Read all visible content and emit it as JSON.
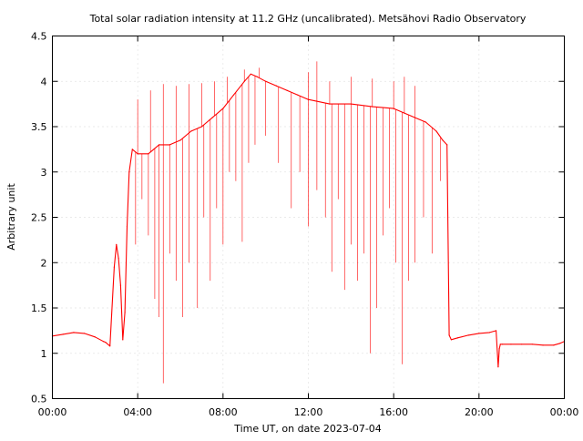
{
  "chart_data": {
    "type": "line",
    "title": "Total solar radiation intensity at 11.2 GHz (uncalibrated). Metsähovi Radio Observatory",
    "xlabel": "Time UT, on date 2023-07-04",
    "ylabel": "Arbitrary unit",
    "xlim": [
      0,
      24
    ],
    "ylim": [
      0.5,
      4.5
    ],
    "grid": true,
    "x_ticks": [
      {
        "value": 0,
        "label": "00:00"
      },
      {
        "value": 4,
        "label": "04:00"
      },
      {
        "value": 8,
        "label": "08:00"
      },
      {
        "value": 12,
        "label": "12:00"
      },
      {
        "value": 16,
        "label": "16:00"
      },
      {
        "value": 20,
        "label": "20:00"
      },
      {
        "value": 24,
        "label": "00:00"
      }
    ],
    "y_ticks": [
      {
        "value": 0.5,
        "label": "0.5"
      },
      {
        "value": 1.0,
        "label": "1"
      },
      {
        "value": 1.5,
        "label": "1.5"
      },
      {
        "value": 2.0,
        "label": "2"
      },
      {
        "value": 2.5,
        "label": "2.5"
      },
      {
        "value": 3.0,
        "label": "3"
      },
      {
        "value": 3.5,
        "label": "3.5"
      },
      {
        "value": 4.0,
        "label": "4"
      },
      {
        "value": 4.5,
        "label": "4.5"
      }
    ],
    "series": [
      {
        "color": "#ff0000",
        "x": [
          0.0,
          0.5,
          1.0,
          1.5,
          2.0,
          2.4,
          2.5,
          2.7,
          2.9,
          3.0,
          3.1,
          3.2,
          3.3,
          3.4,
          3.5,
          3.6,
          3.75,
          4.0,
          4.5,
          5.0,
          5.5,
          6.0,
          6.5,
          7.0,
          7.5,
          8.0,
          8.5,
          9.0,
          9.3,
          9.6,
          10.0,
          10.5,
          11.0,
          11.5,
          12.0,
          13.0,
          14.0,
          15.0,
          16.0,
          16.5,
          17.0,
          17.5,
          18.0,
          18.3,
          18.5,
          18.6,
          18.7,
          19.0,
          19.5,
          20.0,
          20.5,
          20.8,
          20.9,
          20.95,
          21.0,
          21.1,
          21.5,
          22.0,
          22.5,
          23.0,
          23.5,
          23.8,
          24.0
        ],
        "y": [
          1.19,
          1.21,
          1.23,
          1.22,
          1.18,
          1.13,
          1.12,
          1.08,
          1.95,
          2.2,
          2.05,
          1.75,
          1.15,
          1.45,
          2.4,
          3.0,
          3.25,
          3.2,
          3.2,
          3.3,
          3.3,
          3.35,
          3.45,
          3.5,
          3.6,
          3.7,
          3.85,
          4.0,
          4.08,
          4.05,
          4.0,
          3.95,
          3.9,
          3.85,
          3.8,
          3.75,
          3.75,
          3.72,
          3.7,
          3.65,
          3.6,
          3.55,
          3.45,
          3.35,
          3.3,
          1.2,
          1.15,
          1.17,
          1.2,
          1.22,
          1.23,
          1.25,
          0.85,
          1.05,
          1.1,
          1.1,
          1.1,
          1.1,
          1.1,
          1.09,
          1.09,
          1.11,
          1.13
        ],
        "dips": [
          {
            "x": 3.9,
            "y": 2.2
          },
          {
            "x": 4.2,
            "y": 2.7
          },
          {
            "x": 4.5,
            "y": 2.3
          },
          {
            "x": 4.8,
            "y": 1.6
          },
          {
            "x": 5.0,
            "y": 1.4
          },
          {
            "x": 5.2,
            "y": 0.67
          },
          {
            "x": 5.5,
            "y": 2.1
          },
          {
            "x": 5.8,
            "y": 1.8
          },
          {
            "x": 6.1,
            "y": 1.4
          },
          {
            "x": 6.4,
            "y": 2.0
          },
          {
            "x": 6.8,
            "y": 1.5
          },
          {
            "x": 7.1,
            "y": 2.5
          },
          {
            "x": 7.4,
            "y": 1.8
          },
          {
            "x": 7.7,
            "y": 2.6
          },
          {
            "x": 8.0,
            "y": 2.2
          },
          {
            "x": 8.3,
            "y": 3.0
          },
          {
            "x": 8.6,
            "y": 2.9
          },
          {
            "x": 8.9,
            "y": 2.23
          },
          {
            "x": 9.2,
            "y": 3.1
          },
          {
            "x": 9.5,
            "y": 3.3
          },
          {
            "x": 10.0,
            "y": 3.4
          },
          {
            "x": 10.6,
            "y": 3.1
          },
          {
            "x": 11.2,
            "y": 2.6
          },
          {
            "x": 11.6,
            "y": 3.0
          },
          {
            "x": 12.0,
            "y": 2.4
          },
          {
            "x": 12.4,
            "y": 2.8
          },
          {
            "x": 12.8,
            "y": 2.5
          },
          {
            "x": 13.1,
            "y": 1.9
          },
          {
            "x": 13.4,
            "y": 2.7
          },
          {
            "x": 13.7,
            "y": 1.7
          },
          {
            "x": 14.0,
            "y": 2.2
          },
          {
            "x": 14.3,
            "y": 1.8
          },
          {
            "x": 14.6,
            "y": 2.1
          },
          {
            "x": 14.9,
            "y": 1.0
          },
          {
            "x": 15.2,
            "y": 1.5
          },
          {
            "x": 15.5,
            "y": 2.3
          },
          {
            "x": 15.8,
            "y": 2.6
          },
          {
            "x": 16.1,
            "y": 2.0
          },
          {
            "x": 16.4,
            "y": 0.88
          },
          {
            "x": 16.7,
            "y": 1.8
          },
          {
            "x": 17.0,
            "y": 2.0
          },
          {
            "x": 17.4,
            "y": 2.5
          },
          {
            "x": 17.8,
            "y": 2.1
          },
          {
            "x": 18.2,
            "y": 2.9
          }
        ],
        "spikes": [
          {
            "x": 4.0,
            "y": 3.8
          },
          {
            "x": 4.6,
            "y": 3.9
          },
          {
            "x": 5.2,
            "y": 3.97
          },
          {
            "x": 5.8,
            "y": 3.95
          },
          {
            "x": 6.4,
            "y": 3.97
          },
          {
            "x": 7.0,
            "y": 3.98
          },
          {
            "x": 7.6,
            "y": 4.0
          },
          {
            "x": 8.2,
            "y": 4.05
          },
          {
            "x": 9.0,
            "y": 4.13
          },
          {
            "x": 9.7,
            "y": 4.15
          },
          {
            "x": 12.0,
            "y": 4.1
          },
          {
            "x": 12.4,
            "y": 4.22
          },
          {
            "x": 13.0,
            "y": 4.0
          },
          {
            "x": 14.0,
            "y": 4.05
          },
          {
            "x": 15.0,
            "y": 4.03
          },
          {
            "x": 16.0,
            "y": 4.0
          },
          {
            "x": 16.5,
            "y": 4.05
          },
          {
            "x": 17.0,
            "y": 3.95
          }
        ]
      }
    ]
  }
}
